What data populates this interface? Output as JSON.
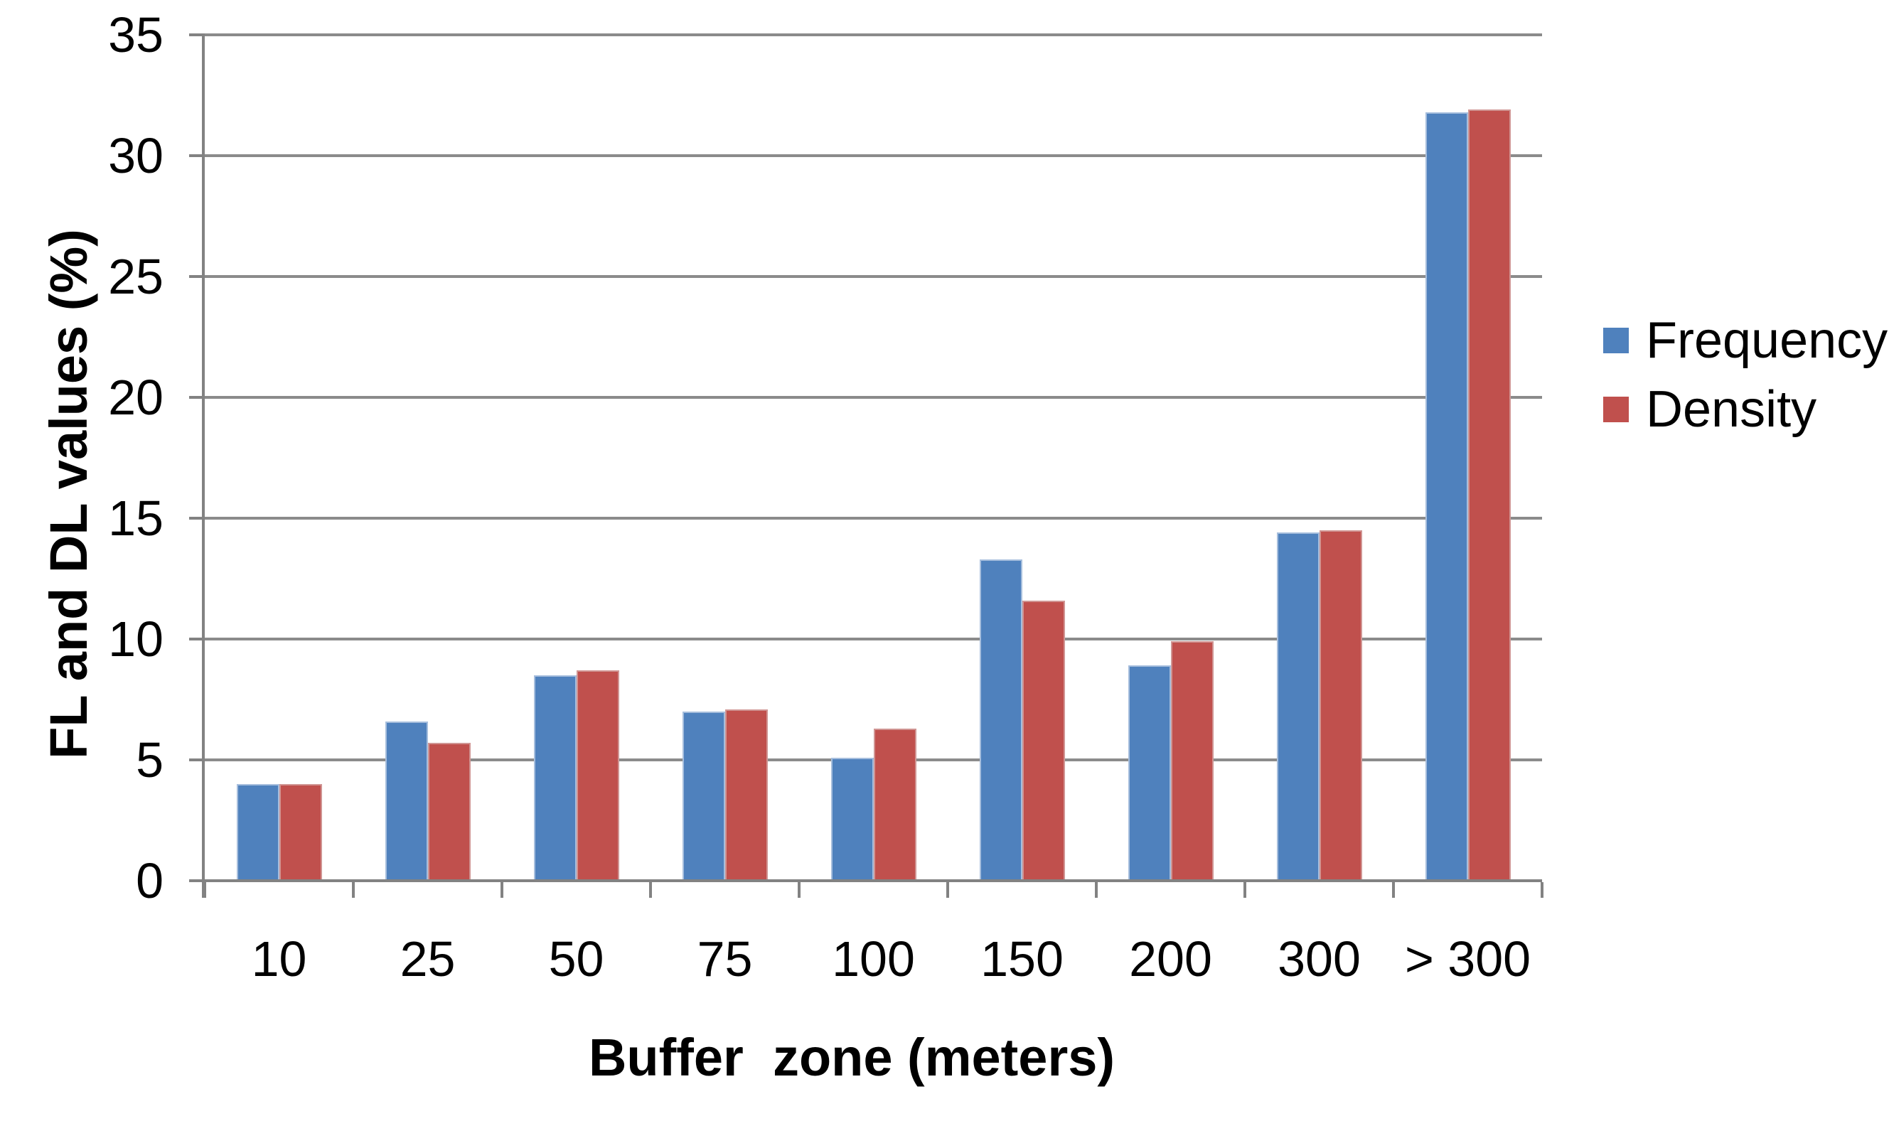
{
  "chart_data": {
    "type": "bar",
    "title": "",
    "xlabel": "Buffer  zone (meters)",
    "ylabel": "FL and DL values (%)",
    "categories": [
      "10",
      "25",
      "50",
      "75",
      "100",
      "150",
      "200",
      "300",
      "> 300"
    ],
    "series": [
      {
        "name": "Frequency",
        "color": "#4F81BD",
        "values": [
          4.0,
          6.6,
          8.5,
          7.0,
          5.1,
          13.3,
          8.9,
          14.4,
          31.8
        ]
      },
      {
        "name": "Density",
        "color": "#C0504D",
        "values": [
          4.0,
          5.7,
          8.7,
          7.1,
          6.3,
          11.6,
          9.9,
          14.5,
          31.9
        ]
      }
    ],
    "ylim": [
      0,
      35
    ],
    "yticks": [
      0,
      5,
      10,
      15,
      20,
      25,
      30,
      35
    ],
    "grid": "horizontal-only",
    "grid_color": "#8b8b8b",
    "axis_color": "#828282",
    "legend_position": "right",
    "legend_entries": [
      "Frequency",
      "Density"
    ]
  }
}
